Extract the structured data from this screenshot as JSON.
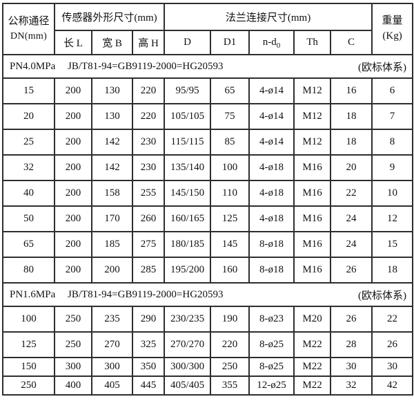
{
  "colors": {
    "background": "#ffffff",
    "border": "#2d2d2d",
    "text": "#111111"
  },
  "table": {
    "header": {
      "dn_line1": "公称通径",
      "dn_line2": "DN(mm)",
      "sensor_group": "传感器外形尺寸(mm)",
      "flange_group": "法兰连接尺寸(mm)",
      "weight_line1": "重量",
      "weight_line2": "(Kg)",
      "col_l": "长 L",
      "col_b": "宽 B",
      "col_h": "高 H",
      "col_d": "D",
      "col_d1": "D1",
      "col_ndo_base": "n-d",
      "col_ndo_sub": "0",
      "col_th": "Th",
      "col_c": "C"
    },
    "sections": [
      {
        "pressure": "PN4.0MPa",
        "standard": "JB/T81-94=GB9119-2000=HG20593",
        "note": "(欧标体系)"
      },
      {
        "pressure": "PN1.6MPa",
        "standard": "JB/T81-94=GB9119-2000=HG20593",
        "note": "(欧标体系)"
      }
    ],
    "rows": [
      [
        "15",
        "200",
        "130",
        "220",
        "95/95",
        "65",
        "4-ø14",
        "M12",
        "16",
        "6"
      ],
      [
        "20",
        "200",
        "130",
        "220",
        "105/105",
        "75",
        "4-ø14",
        "M12",
        "18",
        "7"
      ],
      [
        "25",
        "200",
        "142",
        "230",
        "115/115",
        "85",
        "4-ø14",
        "M12",
        "18",
        "8"
      ],
      [
        "32",
        "200",
        "142",
        "230",
        "135/140",
        "100",
        "4-ø18",
        "M16",
        "20",
        "9"
      ],
      [
        "40",
        "200",
        "158",
        "255",
        "145/150",
        "110",
        "4-ø18",
        "M16",
        "22",
        "10"
      ],
      [
        "50",
        "200",
        "170",
        "260",
        "160/165",
        "125",
        "4-ø18",
        "M16",
        "24",
        "12"
      ],
      [
        "65",
        "200",
        "185",
        "275",
        "180/185",
        "145",
        "8-ø18",
        "M16",
        "24",
        "15"
      ],
      [
        "80",
        "200",
        "200",
        "285",
        "195/200",
        "160",
        "8-ø18",
        "M16",
        "26",
        "18"
      ],
      [
        "100",
        "250",
        "235",
        "290",
        "230/235",
        "190",
        "8-ø23",
        "M20",
        "26",
        "22"
      ],
      [
        "125",
        "250",
        "270",
        "325",
        "270/270",
        "220",
        "8-ø25",
        "M22",
        "28",
        "26"
      ],
      [
        "150",
        "300",
        "300",
        "350",
        "300/300",
        "250",
        "8-ø25",
        "M22",
        "30",
        "30"
      ],
      [
        "250",
        "400",
        "405",
        "445",
        "405/405",
        "355",
        "12-ø25",
        "M22",
        "32",
        "42"
      ]
    ]
  }
}
